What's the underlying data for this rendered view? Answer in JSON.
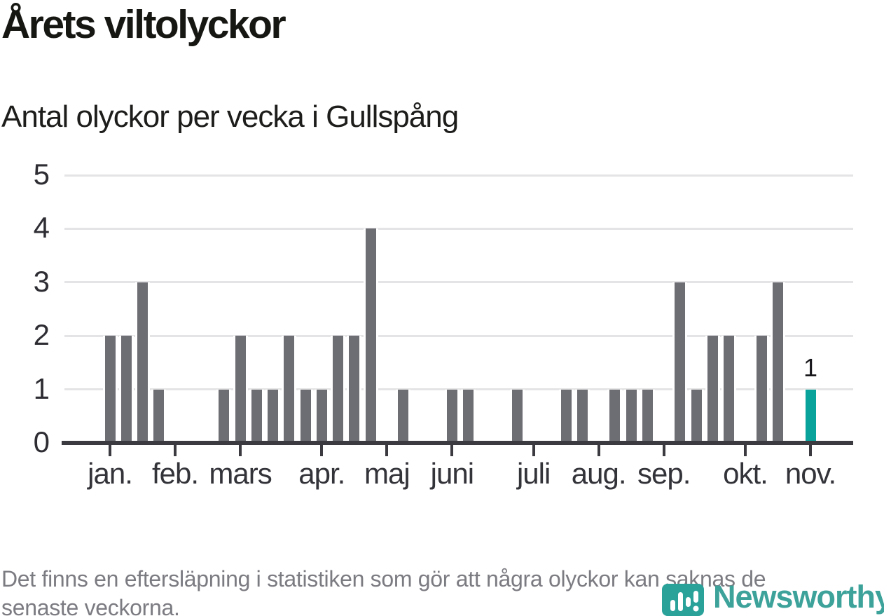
{
  "header": {
    "title": "Årets viltolyckor",
    "subtitle": "Antal olyckor per vecka i Gullspång"
  },
  "footer": {
    "note_lines": [
      "Det finns en eftersläpning i statistiken som gör att några olyckor kan saknas de",
      "senaste veckorna."
    ]
  },
  "logo": {
    "wordmark": "Newsworthy",
    "icon": "newsworthy-pin-bar-chart-icon",
    "teal": "#2aa29a",
    "wordmark_color": "#3ca29a"
  },
  "chart_data": {
    "type": "bar",
    "title": "Årets viltolyckor",
    "subtitle": "Antal olyckor per vecka i Gullspång",
    "ylabel": "",
    "xlabel": "",
    "ylim": [
      0,
      5
    ],
    "yticks": [
      "0",
      "1",
      "2",
      "3",
      "4",
      "5"
    ],
    "grid": true,
    "bar_color": "#6d6d74",
    "highlight_color": "#0aa39b",
    "num_week_slots": 44,
    "weekly_values": [
      2,
      2,
      3,
      1,
      0,
      0,
      0,
      1,
      2,
      1,
      1,
      2,
      1,
      1,
      2,
      2,
      4,
      0,
      1,
      0,
      0,
      1,
      1,
      0,
      0,
      1,
      0,
      0,
      1,
      1,
      0,
      1,
      1,
      1,
      0,
      3,
      1,
      2,
      2,
      0,
      2,
      3,
      0,
      1
    ],
    "highlight_slot": 43,
    "data_label": {
      "slot": 43,
      "text": "1"
    },
    "month_ticks": [
      {
        "label": "jan.",
        "slot": 0
      },
      {
        "label": "feb.",
        "slot": 4
      },
      {
        "label": "mars",
        "slot": 8
      },
      {
        "label": "apr.",
        "slot": 13
      },
      {
        "label": "maj",
        "slot": 17
      },
      {
        "label": "juni",
        "slot": 21
      },
      {
        "label": "juli",
        "slot": 26
      },
      {
        "label": "aug.",
        "slot": 30
      },
      {
        "label": "sep.",
        "slot": 34
      },
      {
        "label": "okt.",
        "slot": 39
      },
      {
        "label": "nov.",
        "slot": 43
      }
    ]
  }
}
